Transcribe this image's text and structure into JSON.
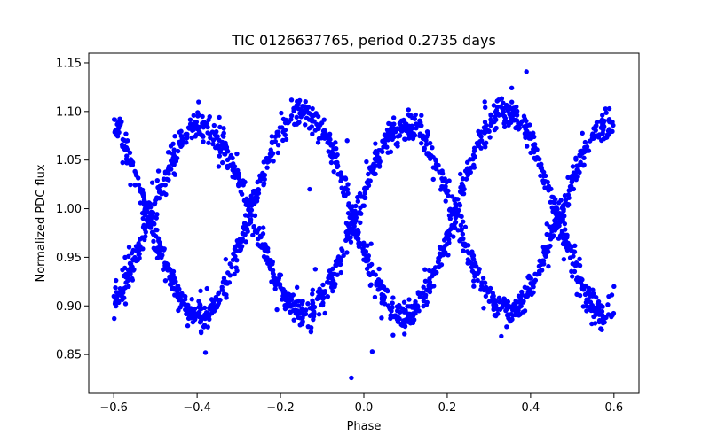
{
  "chart_data": {
    "type": "scatter",
    "title": "TIC 0126637765, period 0.2735 days",
    "xlabel": "Phase",
    "ylabel": "Normalized PDC flux",
    "xlim": [
      -0.66,
      0.66
    ],
    "ylim": [
      0.81,
      1.16
    ],
    "xticks": [
      -0.6,
      -0.4,
      -0.2,
      0.0,
      0.2,
      0.4,
      0.6
    ],
    "xtick_labels": [
      "−0.6",
      "−0.4",
      "−0.2",
      "0.0",
      "0.2",
      "0.4",
      "0.6"
    ],
    "yticks": [
      0.85,
      0.9,
      0.95,
      1.0,
      1.05,
      1.1,
      1.15
    ],
    "ytick_labels": [
      "0.85",
      "0.90",
      "0.95",
      "1.00",
      "1.05",
      "1.10",
      "1.15"
    ],
    "grid": false,
    "marker_color": "#0000ff",
    "x_range": [
      -0.6,
      0.6
    ],
    "series": [
      {
        "curves": [
          {
            "mean": 0.995,
            "amplitude": 0.105,
            "phase_of_max": -0.15,
            "cycle": 0.49
          },
          {
            "mean": 0.99,
            "amplitude": 0.095,
            "phase_of_max": 0.1,
            "cycle": 0.49
          }
        ],
        "scatter": 0.008,
        "points_per_curve": 1100
      }
    ],
    "outliers": [
      {
        "x": -0.03,
        "y": 0.826
      },
      {
        "x": 0.39,
        "y": 1.141
      },
      {
        "x": 0.02,
        "y": 0.853
      },
      {
        "x": -0.38,
        "y": 0.852
      },
      {
        "x": -0.04,
        "y": 1.07
      },
      {
        "x": -0.13,
        "y": 1.02
      },
      {
        "x": 0.07,
        "y": 0.87
      },
      {
        "x": 0.29,
        "y": 1.11
      },
      {
        "x": 0.6,
        "y": 0.92
      }
    ]
  }
}
